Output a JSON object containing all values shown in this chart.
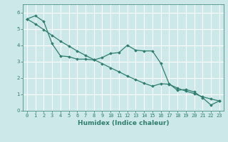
{
  "title": "",
  "xlabel": "Humidex (Indice chaleur)",
  "ylabel": "",
  "bg_color": "#cce8e8",
  "line_color": "#2e7d6e",
  "grid_color": "#aacccc",
  "x_line1": [
    0,
    1,
    2,
    3,
    4,
    5,
    6,
    7,
    8,
    9,
    10,
    11,
    12,
    13,
    14,
    15,
    16,
    17,
    18,
    19,
    20,
    21,
    22,
    23
  ],
  "y_line1": [
    5.6,
    5.8,
    5.45,
    4.1,
    3.35,
    3.3,
    3.15,
    3.15,
    3.1,
    3.25,
    3.5,
    3.55,
    4.0,
    3.7,
    3.65,
    3.65,
    2.9,
    1.65,
    1.25,
    1.3,
    1.15,
    0.8,
    0.35,
    0.6
  ],
  "x_line2": [
    0,
    1,
    2,
    3,
    4,
    5,
    6,
    7,
    8,
    9,
    10,
    11,
    12,
    13,
    14,
    15,
    16,
    17,
    18,
    19,
    20,
    21,
    22,
    23
  ],
  "y_line2": [
    5.6,
    5.3,
    4.95,
    4.6,
    4.25,
    3.95,
    3.65,
    3.38,
    3.12,
    2.88,
    2.62,
    2.38,
    2.12,
    1.9,
    1.68,
    1.5,
    1.65,
    1.62,
    1.38,
    1.2,
    1.05,
    0.85,
    0.72,
    0.6
  ],
  "ylim": [
    0,
    6.5
  ],
  "xlim": [
    -0.5,
    23.5
  ],
  "yticks": [
    0,
    1,
    2,
    3,
    4,
    5,
    6
  ],
  "xticks": [
    0,
    1,
    2,
    3,
    4,
    5,
    6,
    7,
    8,
    9,
    10,
    11,
    12,
    13,
    14,
    15,
    16,
    17,
    18,
    19,
    20,
    21,
    22,
    23
  ],
  "tick_fontsize": 5.0,
  "label_fontsize": 6.5,
  "marker": "D",
  "markersize": 1.8,
  "linewidth": 0.9
}
